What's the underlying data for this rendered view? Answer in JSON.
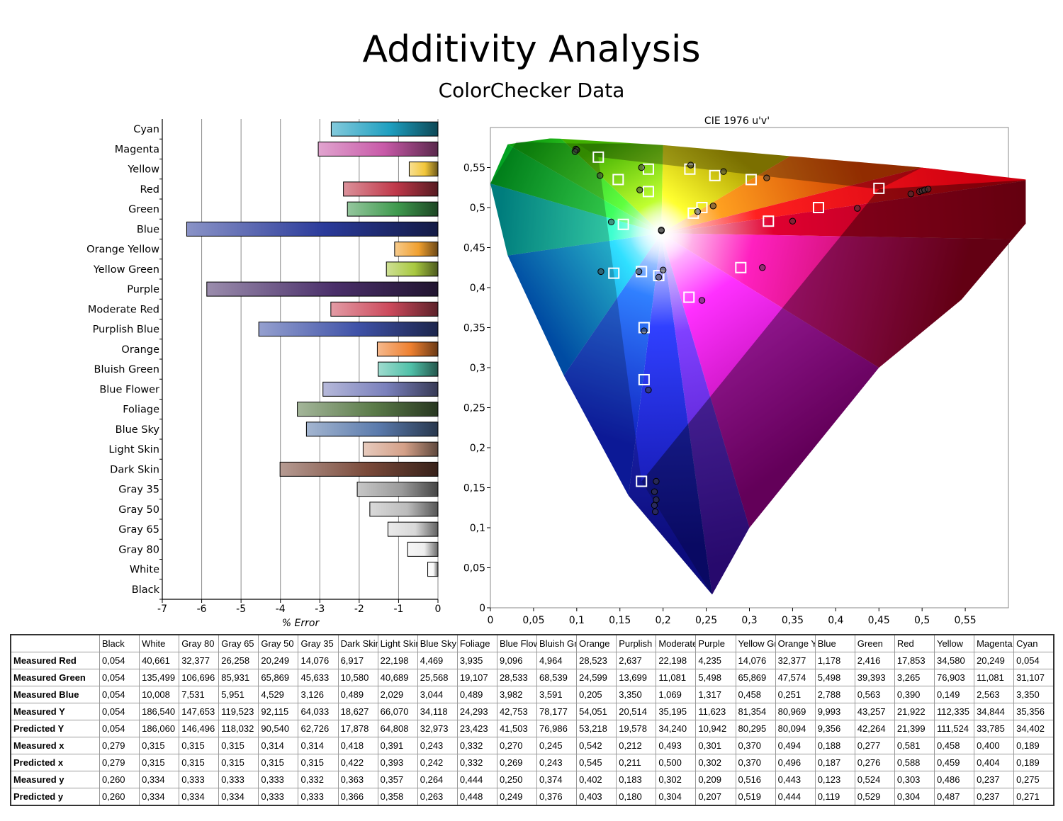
{
  "title": "Additivity Analysis",
  "subtitle": "ColorChecker Data",
  "chart_data": [
    {
      "type": "bar",
      "orientation": "horizontal",
      "xlabel": "% Error",
      "xlim": [
        -7,
        0
      ],
      "xticks": [
        "-7",
        "-6",
        "-5",
        "-4",
        "-3",
        "-2",
        "-1",
        "0"
      ],
      "grid": "vertical",
      "categories": [
        "Cyan",
        "Magenta",
        "Yellow",
        "Red",
        "Green",
        "Blue",
        "Orange Yellow",
        "Yellow Green",
        "Purple",
        "Moderate Red",
        "Purplish Blue",
        "Orange",
        "Bluish Green",
        "Blue Flower",
        "Foliage",
        "Blue Sky",
        "Light Skin",
        "Dark Skin",
        "Gray 35",
        "Gray 50",
        "Gray 65",
        "Gray 80",
        "White",
        "Black"
      ],
      "values": [
        -2.71,
        -3.04,
        -0.73,
        -2.4,
        -2.3,
        -6.38,
        -1.1,
        -1.31,
        -5.87,
        -2.72,
        -4.55,
        -1.54,
        -1.52,
        -2.92,
        -3.57,
        -3.34,
        -1.9,
        -4.01,
        -2.05,
        -1.73,
        -1.27,
        -0.77,
        -0.26,
        0
      ],
      "colors": [
        "#1e9fc0",
        "#c85aa8",
        "#f2c63a",
        "#c0394a",
        "#3f9a4e",
        "#2a3a9a",
        "#f0a030",
        "#a8c840",
        "#4a2f6a",
        "#cc4a5c",
        "#3f52a8",
        "#ee8030",
        "#50c0a8",
        "#7a80bc",
        "#5a7a48",
        "#5a7aac",
        "#d4a088",
        "#7a4a3a",
        "#9a9a9a",
        "#bcbcbc",
        "#d8d8d8",
        "#eeeeee",
        "#fafafa",
        "#202020"
      ]
    },
    {
      "type": "scatter",
      "title": "CIE 1976 u'v'",
      "xlim": [
        0,
        0.6
      ],
      "ylim": [
        0,
        0.6
      ],
      "xticks": [
        "0",
        "0,05",
        "0,1",
        "0,15",
        "0,2",
        "0,25",
        "0,3",
        "0,35",
        "0,4",
        "0,45",
        "0,5",
        "0,55"
      ],
      "yticks": [
        "0",
        "0,05",
        "0,1",
        "0,15",
        "0,2",
        "0,25",
        "0,3",
        "0,35",
        "0,4",
        "0,45",
        "0,5",
        "0,55"
      ],
      "series": [
        {
          "marker": "square",
          "points": [
            [
              0.125,
              0.563
            ],
            [
              0.148,
              0.535
            ],
            [
              0.183,
              0.548
            ],
            [
              0.183,
              0.52
            ],
            [
              0.231,
              0.548
            ],
            [
              0.26,
              0.54
            ],
            [
              0.302,
              0.535
            ],
            [
              0.45,
              0.524
            ],
            [
              0.38,
              0.5
            ],
            [
              0.245,
              0.5
            ],
            [
              0.235,
              0.493
            ],
            [
              0.322,
              0.483
            ],
            [
              0.154,
              0.479
            ],
            [
              0.29,
              0.425
            ],
            [
              0.143,
              0.418
            ],
            [
              0.175,
              0.42
            ],
            [
              0.195,
              0.415
            ],
            [
              0.23,
              0.388
            ],
            [
              0.178,
              0.35
            ],
            [
              0.178,
              0.285
            ],
            [
              0.175,
              0.158
            ]
          ]
        },
        {
          "marker": "circle",
          "points": [
            [
              0.099,
              0.573
            ],
            [
              0.1,
              0.572
            ],
            [
              0.098,
              0.57
            ],
            [
              0.127,
              0.54
            ],
            [
              0.175,
              0.55
            ],
            [
              0.232,
              0.553
            ],
            [
              0.27,
              0.545
            ],
            [
              0.32,
              0.537
            ],
            [
              0.173,
              0.522
            ],
            [
              0.258,
              0.502
            ],
            [
              0.24,
              0.495
            ],
            [
              0.425,
              0.499
            ],
            [
              0.35,
              0.483
            ],
            [
              0.14,
              0.482
            ],
            [
              0.198,
              0.471
            ],
            [
              0.198,
              0.472
            ],
            [
              0.2,
              0.422
            ],
            [
              0.128,
              0.42
            ],
            [
              0.172,
              0.42
            ],
            [
              0.195,
              0.413
            ],
            [
              0.315,
              0.425
            ],
            [
              0.245,
              0.384
            ],
            [
              0.178,
              0.346
            ],
            [
              0.183,
              0.272
            ],
            [
              0.487,
              0.517
            ],
            [
              0.497,
              0.52
            ],
            [
              0.5,
              0.521
            ],
            [
              0.503,
              0.522
            ],
            [
              0.507,
              0.523
            ],
            [
              0.192,
              0.158
            ],
            [
              0.19,
              0.145
            ],
            [
              0.192,
              0.135
            ],
            [
              0.19,
              0.128
            ],
            [
              0.191,
              0.12
            ]
          ]
        }
      ]
    },
    {
      "type": "table",
      "columns": [
        "Black",
        "White",
        "Gray 80",
        "Gray 65",
        "Gray 50",
        "Gray 35",
        "Dark Skin",
        "Light Skin",
        "Blue Sky",
        "Foliage",
        "Blue Flowe",
        "Bluish Gre",
        "Orange",
        "Purplish Bl",
        "Moderate",
        "Purple",
        "Yellow Gre",
        "Orange Yel",
        "Blue",
        "Green",
        "Red",
        "Yellow",
        "Magenta",
        "Cyan"
      ],
      "rows": [
        {
          "label": "Measured Red",
          "values": [
            "0,054",
            "40,661",
            "32,377",
            "26,258",
            "20,249",
            "14,076",
            "6,917",
            "22,198",
            "4,469",
            "3,935",
            "9,096",
            "4,964",
            "28,523",
            "2,637",
            "22,198",
            "4,235",
            "14,076",
            "32,377",
            "1,178",
            "2,416",
            "17,853",
            "34,580",
            "20,249",
            "0,054"
          ]
        },
        {
          "label": "Measured Green",
          "values": [
            "0,054",
            "135,499",
            "106,696",
            "85,931",
            "65,869",
            "45,633",
            "10,580",
            "40,689",
            "25,568",
            "19,107",
            "28,533",
            "68,539",
            "24,599",
            "13,699",
            "11,081",
            "5,498",
            "65,869",
            "47,574",
            "5,498",
            "39,393",
            "3,265",
            "76,903",
            "11,081",
            "31,107"
          ]
        },
        {
          "label": "Measured Blue",
          "values": [
            "0,054",
            "10,008",
            "7,531",
            "5,951",
            "4,529",
            "3,126",
            "0,489",
            "2,029",
            "3,044",
            "0,489",
            "3,982",
            "3,591",
            "0,205",
            "3,350",
            "1,069",
            "1,317",
            "0,458",
            "0,251",
            "2,788",
            "0,563",
            "0,390",
            "0,149",
            "2,563",
            "3,350"
          ]
        },
        {
          "label": "Measured Y",
          "values": [
            "0,054",
            "186,540",
            "147,653",
            "119,523",
            "92,115",
            "64,033",
            "18,627",
            "66,070",
            "34,118",
            "24,293",
            "42,753",
            "78,177",
            "54,051",
            "20,514",
            "35,195",
            "11,623",
            "81,354",
            "80,969",
            "9,993",
            "43,257",
            "21,922",
            "112,335",
            "34,844",
            "35,356"
          ]
        },
        {
          "label": "Predicted Y",
          "values": [
            "0,054",
            "186,060",
            "146,496",
            "118,032",
            "90,540",
            "62,726",
            "17,878",
            "64,808",
            "32,973",
            "23,423",
            "41,503",
            "76,986",
            "53,218",
            "19,578",
            "34,240",
            "10,942",
            "80,295",
            "80,094",
            "9,356",
            "42,264",
            "21,399",
            "111,524",
            "33,785",
            "34,402"
          ]
        },
        {
          "label": "Measured x",
          "values": [
            "0,279",
            "0,315",
            "0,315",
            "0,315",
            "0,314",
            "0,314",
            "0,418",
            "0,391",
            "0,243",
            "0,332",
            "0,270",
            "0,245",
            "0,542",
            "0,212",
            "0,493",
            "0,301",
            "0,370",
            "0,494",
            "0,188",
            "0,277",
            "0,581",
            "0,458",
            "0,400",
            "0,189"
          ]
        },
        {
          "label": "Predicted x",
          "values": [
            "0,279",
            "0,315",
            "0,315",
            "0,315",
            "0,315",
            "0,315",
            "0,422",
            "0,393",
            "0,242",
            "0,332",
            "0,269",
            "0,243",
            "0,545",
            "0,211",
            "0,500",
            "0,302",
            "0,370",
            "0,496",
            "0,187",
            "0,276",
            "0,588",
            "0,459",
            "0,404",
            "0,189"
          ]
        },
        {
          "label": "Measured y",
          "values": [
            "0,260",
            "0,334",
            "0,333",
            "0,333",
            "0,333",
            "0,332",
            "0,363",
            "0,357",
            "0,264",
            "0,444",
            "0,250",
            "0,374",
            "0,402",
            "0,183",
            "0,302",
            "0,209",
            "0,516",
            "0,443",
            "0,123",
            "0,524",
            "0,303",
            "0,486",
            "0,237",
            "0,275"
          ]
        },
        {
          "label": "Predicted y",
          "values": [
            "0,260",
            "0,334",
            "0,334",
            "0,334",
            "0,333",
            "0,333",
            "0,366",
            "0,358",
            "0,263",
            "0,448",
            "0,249",
            "0,376",
            "0,403",
            "0,180",
            "0,304",
            "0,207",
            "0,519",
            "0,444",
            "0,119",
            "0,529",
            "0,304",
            "0,487",
            "0,237",
            "0,271"
          ]
        }
      ]
    }
  ]
}
